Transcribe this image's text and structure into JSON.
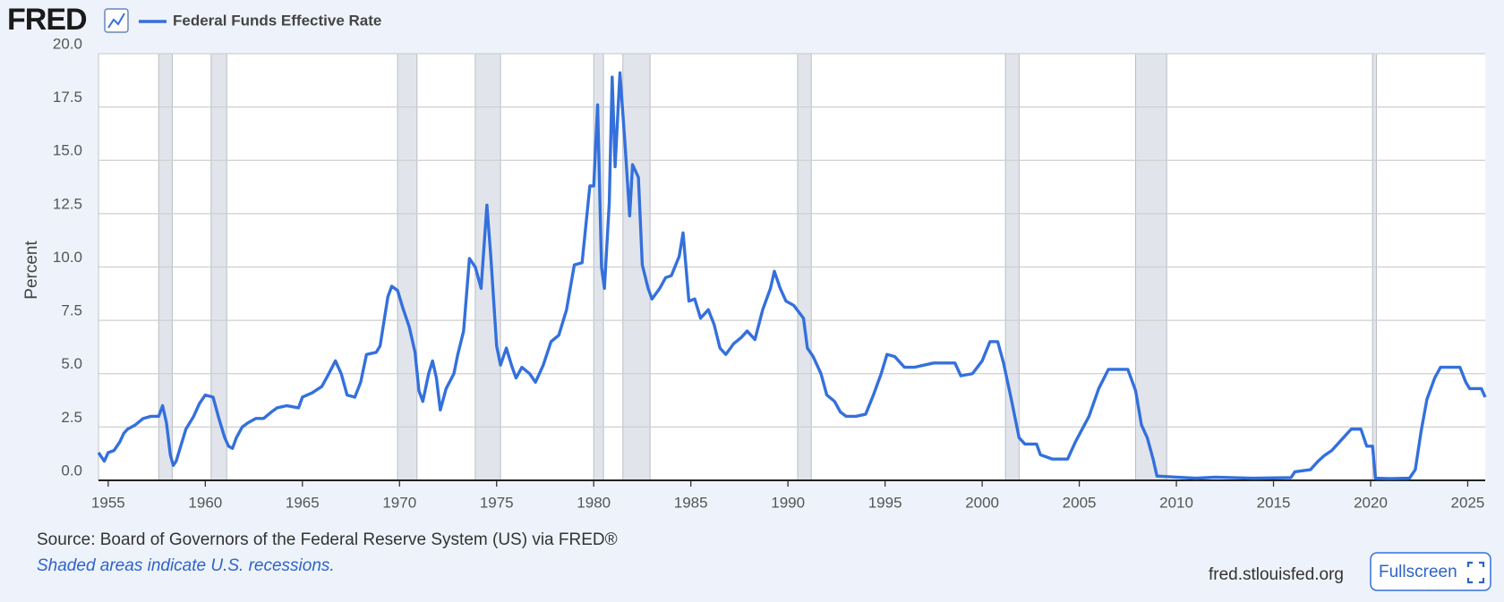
{
  "header": {
    "logo": "FRED"
  },
  "footer": {
    "site": "fred.stlouisfed.org",
    "button": "Fullscreen"
  },
  "chart_data": {
    "type": "line",
    "y_label": "Percent",
    "source": "Source: Board of Governors of the Federal Reserve System (US) via FRED®",
    "note": "Shaded areas indicate U.S. recessions.",
    "grid": true,
    "xlim": [
      1954.5,
      2025.9
    ],
    "xticks": [
      1955,
      1960,
      1965,
      1970,
      1975,
      1980,
      1985,
      1990,
      1995,
      2000,
      2005,
      2010,
      2015,
      2020,
      2025
    ],
    "ylim": [
      0,
      20
    ],
    "yticks": [
      {
        "value": 0,
        "label": "0.0"
      },
      2.5,
      {
        "value": 5,
        "label": "5.0"
      },
      7.5,
      {
        "value": 10,
        "label": "10.0"
      },
      12.5,
      {
        "value": 15,
        "label": "15.0"
      },
      17.5,
      {
        "value": 20,
        "label": "20.0"
      }
    ],
    "recession_color": "#e1e5eb",
    "recessions": [
      {
        "start": 1957.6,
        "end": 1958.3
      },
      {
        "start": 1960.3,
        "end": 1961.1
      },
      {
        "start": 1969.9,
        "end": 1970.9
      },
      {
        "start": 1973.9,
        "end": 1975.2
      },
      {
        "start": 1980.0,
        "end": 1980.5
      },
      {
        "start": 1981.5,
        "end": 1982.9
      },
      {
        "start": 1990.5,
        "end": 1991.2
      },
      {
        "start": 2001.2,
        "end": 2001.9
      },
      {
        "start": 2007.9,
        "end": 2009.5
      },
      {
        "start": 2020.1,
        "end": 2020.3
      }
    ],
    "x": [
      1954.5,
      1954.8,
      1955.0,
      1955.3,
      1955.6,
      1955.8,
      1956.0,
      1956.4,
      1956.8,
      1957.2,
      1957.6,
      1957.8,
      1958.0,
      1958.2,
      1958.35,
      1958.5,
      1958.8,
      1959.0,
      1959.4,
      1959.7,
      1960.0,
      1960.4,
      1960.7,
      1961.0,
      1961.2,
      1961.4,
      1961.6,
      1961.9,
      1962.2,
      1962.6,
      1963.0,
      1963.4,
      1963.7,
      1964.2,
      1964.8,
      1965.0,
      1965.5,
      1966.0,
      1966.3,
      1966.7,
      1967.0,
      1967.3,
      1967.7,
      1968.0,
      1968.3,
      1968.8,
      1969.0,
      1969.4,
      1969.6,
      1969.9,
      1970.2,
      1970.5,
      1970.8,
      1971.0,
      1971.2,
      1971.5,
      1971.7,
      1971.9,
      1972.1,
      1972.4,
      1972.8,
      1973.0,
      1973.3,
      1973.6,
      1973.9,
      1974.2,
      1974.5,
      1974.7,
      1975.0,
      1975.2,
      1975.5,
      1975.8,
      1976.0,
      1976.3,
      1976.7,
      1977.0,
      1977.4,
      1977.8,
      1978.2,
      1978.6,
      1979.0,
      1979.4,
      1979.8,
      1980.0,
      1980.2,
      1980.4,
      1980.55,
      1980.8,
      1980.95,
      1981.1,
      1981.35,
      1981.6,
      1981.85,
      1982.0,
      1982.3,
      1982.5,
      1982.8,
      1983.0,
      1983.4,
      1983.7,
      1984.0,
      1984.4,
      1984.6,
      1984.9,
      1985.2,
      1985.5,
      1985.9,
      1986.2,
      1986.5,
      1986.8,
      1987.2,
      1987.6,
      1987.9,
      1988.3,
      1988.7,
      1989.1,
      1989.3,
      1989.6,
      1989.9,
      1990.3,
      1990.8,
      1991.0,
      1991.3,
      1991.7,
      1992.0,
      1992.4,
      1992.7,
      1993.0,
      1993.5,
      1994.0,
      1994.4,
      1994.8,
      1995.1,
      1995.5,
      1996.0,
      1996.5,
      1997.0,
      1997.5,
      1998.0,
      1998.6,
      1998.9,
      1999.5,
      2000.0,
      2000.4,
      2000.8,
      2001.1,
      2001.5,
      2001.9,
      2002.2,
      2002.8,
      2003.0,
      2003.6,
      2004.4,
      2004.8,
      2005.5,
      2006.0,
      2006.5,
      2007.5,
      2007.9,
      2008.2,
      2008.5,
      2008.8,
      2009.0,
      2010.0,
      2011.0,
      2012.0,
      2014.0,
      2015.9,
      2016.1,
      2016.9,
      2017.3,
      2017.6,
      2018.0,
      2018.5,
      2019.0,
      2019.5,
      2019.8,
      2020.1,
      2020.25,
      2021.0,
      2022.0,
      2022.3,
      2022.6,
      2022.9,
      2023.3,
      2023.6,
      2024.6,
      2024.9,
      2025.1,
      2025.7,
      2025.9
    ],
    "series": [
      {
        "name": "Federal Funds Effective Rate",
        "color": "#3470dc",
        "values": [
          1.3,
          0.9,
          1.3,
          1.4,
          1.8,
          2.2,
          2.4,
          2.6,
          2.9,
          3.0,
          3.0,
          3.5,
          2.7,
          1.2,
          0.7,
          0.9,
          1.8,
          2.4,
          3.0,
          3.6,
          4.0,
          3.9,
          2.9,
          2.0,
          1.6,
          1.5,
          2.0,
          2.5,
          2.7,
          2.9,
          2.9,
          3.2,
          3.4,
          3.5,
          3.4,
          3.9,
          4.1,
          4.4,
          4.9,
          5.6,
          5.0,
          4.0,
          3.9,
          4.6,
          5.9,
          6.0,
          6.3,
          8.6,
          9.1,
          8.9,
          8.0,
          7.2,
          6.0,
          4.2,
          3.7,
          5.0,
          5.6,
          4.8,
          3.3,
          4.3,
          5.0,
          5.9,
          7.0,
          10.4,
          10.0,
          9.0,
          12.9,
          10.5,
          6.3,
          5.4,
          6.2,
          5.3,
          4.8,
          5.3,
          5.0,
          4.6,
          5.4,
          6.5,
          6.8,
          8.0,
          10.1,
          10.2,
          13.8,
          13.8,
          17.6,
          10.0,
          9.0,
          13.0,
          18.9,
          14.7,
          19.1,
          15.9,
          12.4,
          14.8,
          14.2,
          10.1,
          9.0,
          8.5,
          9.0,
          9.5,
          9.6,
          10.5,
          11.6,
          8.4,
          8.5,
          7.6,
          8.0,
          7.3,
          6.2,
          5.9,
          6.4,
          6.7,
          7.0,
          6.6,
          8.0,
          9.0,
          9.8,
          9.0,
          8.4,
          8.2,
          7.6,
          6.2,
          5.8,
          5.0,
          4.0,
          3.7,
          3.2,
          3.0,
          3.0,
          3.1,
          4.0,
          5.0,
          5.9,
          5.8,
          5.3,
          5.3,
          5.4,
          5.5,
          5.5,
          5.5,
          4.9,
          5.0,
          5.6,
          6.5,
          6.5,
          5.5,
          3.8,
          2.0,
          1.7,
          1.7,
          1.2,
          1.0,
          1.0,
          1.8,
          3.0,
          4.3,
          5.2,
          5.2,
          4.2,
          2.6,
          2.0,
          1.0,
          0.2,
          0.15,
          0.1,
          0.15,
          0.1,
          0.13,
          0.4,
          0.5,
          0.9,
          1.15,
          1.4,
          1.9,
          2.4,
          2.4,
          1.6,
          1.6,
          0.1,
          0.08,
          0.1,
          0.5,
          2.3,
          3.8,
          4.8,
          5.3,
          5.3,
          4.6,
          4.3,
          4.3,
          3.9
        ]
      }
    ]
  }
}
